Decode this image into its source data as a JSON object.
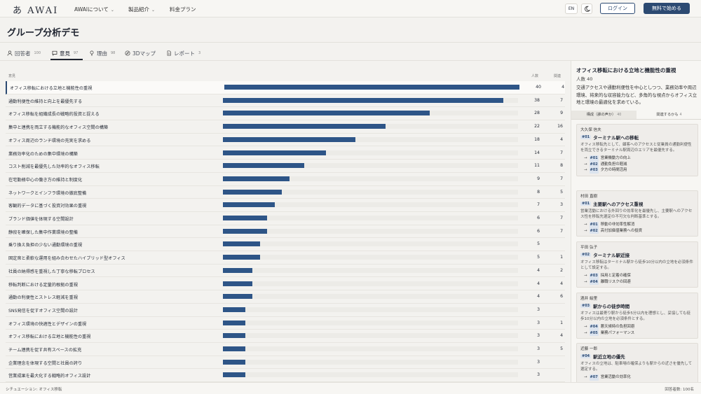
{
  "app": {
    "logo": "あ AWAI",
    "nav": [
      {
        "label": "AWAIについて"
      },
      {
        "label": "製品紹介"
      },
      {
        "label": "料金プラン"
      }
    ],
    "lang": "EN",
    "login": "ログイン",
    "start": "無料で始める"
  },
  "page": {
    "title": "グループ分析デモ"
  },
  "tabs": [
    {
      "label": "回答者",
      "count": "100",
      "icon": "person-icon"
    },
    {
      "label": "意見",
      "count": "97",
      "icon": "speech-bubble-icon"
    },
    {
      "label": "理由",
      "count": "98",
      "icon": "lightbulb-icon"
    },
    {
      "label": "3Dマップ",
      "count": "",
      "icon": "compass-icon"
    },
    {
      "label": "レポート",
      "count": "3",
      "icon": "document-icon"
    }
  ],
  "table": {
    "headers": {
      "opinion": "意見",
      "count": "人数",
      "related": "関連"
    },
    "max": 40,
    "rows": [
      {
        "label": "オフィス移転における立地と機能性の重視",
        "count": "40",
        "related": "4"
      },
      {
        "label": "通勤利便性の維持と向上を最優先する",
        "count": "38",
        "related": "7"
      },
      {
        "label": "オフィス移転を組織成長の戦略的投資と捉える",
        "count": "28",
        "related": "9"
      },
      {
        "label": "集中と連携を両立する機能的なオフィス空間の構築",
        "count": "22",
        "related": "16"
      },
      {
        "label": "オフィス周辺のランチ環境の充実を求める",
        "count": "18",
        "related": "4"
      },
      {
        "label": "業務効率化のための集中環境の構築",
        "count": "14",
        "related": "7"
      },
      {
        "label": "コスト削減を最優先した効率的なオフィス移転",
        "count": "11",
        "related": "8"
      },
      {
        "label": "在宅勤務中心の働き方の維持と制度化",
        "count": "9",
        "related": "7"
      },
      {
        "label": "ネットワークとインフラ環境の徹底整備",
        "count": "8",
        "related": "5"
      },
      {
        "label": "客観的データに基づく投資対効果の重視",
        "count": "7",
        "related": "3"
      },
      {
        "label": "ブランド価値を体現する空間設計",
        "count": "6",
        "related": "7"
      },
      {
        "label": "静寂を確保した集中作業環境の整備",
        "count": "6",
        "related": "7"
      },
      {
        "label": "乗り換え負担の少ない通勤環境の重視",
        "count": "5",
        "related": ""
      },
      {
        "label": "固定席と柔軟な運用を組み合わせたハイブリッド型オフィス",
        "count": "5",
        "related": "1"
      },
      {
        "label": "社員の納得感を重視した丁寧な移転プロセス",
        "count": "4",
        "related": "2"
      },
      {
        "label": "移転判断における定量的根拠の重視",
        "count": "4",
        "related": "4"
      },
      {
        "label": "通勤の利便性とストレス軽減を重視",
        "count": "4",
        "related": "6"
      },
      {
        "label": "SNS発信を促すオフィス空間の設計",
        "count": "3",
        "related": ""
      },
      {
        "label": "オフィス環境の快適性とデザインの重視",
        "count": "3",
        "related": "1"
      },
      {
        "label": "オフィス移転における立地と機能性の重視",
        "count": "3",
        "related": "4"
      },
      {
        "label": "チーム連携を促す共有スペースの拡充",
        "count": "3",
        "related": "5"
      },
      {
        "label": "企業理念を体現する空間と社員の誇り",
        "count": "3",
        "related": ""
      },
      {
        "label": "営業成果を最大化する戦略的オフィス設計",
        "count": "3",
        "related": ""
      }
    ]
  },
  "panel": {
    "title": "オフィス移転における立地と機能性の重視",
    "sub": "人数 40",
    "desc": "交通アクセスや通勤利便性を中心としつつ、業務効率や周辺環境、将来的な収容能力など、多角的な視点からオフィス立地と環境の最適化を求めている。",
    "tabs": [
      {
        "label": "構成（誰の声か）",
        "count": "40"
      },
      {
        "label": "関連するかも",
        "count": "4"
      }
    ],
    "cards": [
      {
        "author": "大久保 信夫",
        "tag": "#01",
        "title": "ターミナル駅への移転",
        "body": "オフィス移転先として、顧客へのアクセスと従業員の通勤利便性を両立できるターミナル駅周辺のエリアを最優先する。",
        "links": [
          {
            "tag": "#01",
            "text": "営業機動力の向上"
          },
          {
            "tag": "#02",
            "text": "通勤負担の軽減"
          },
          {
            "tag": "#03",
            "text": "夕方の時間活用"
          }
        ]
      },
      {
        "author": "村田 直樹",
        "tag": "#01",
        "title": "主要駅へのアクセス重視",
        "body": "営業活動における外回りの効率化を最優先し、主要駅へのアクセス性を移転先選定の不可欠な判断基準とする。",
        "links": [
          {
            "tag": "#01",
            "text": "移動の非効率性解消"
          },
          {
            "tag": "#02",
            "text": "高付加価値業務への投資"
          }
        ]
      },
      {
        "author": "平田 弘子",
        "tag": "#02",
        "title": "ターミナル駅近接",
        "body": "オフィス移転はターミナル駅から徒歩10分以内の立地を必須条件として設定する。",
        "links": [
          {
            "tag": "#03",
            "text": "採用と定着の確保"
          },
          {
            "tag": "#04",
            "text": "離職リスクの回避"
          }
        ]
      },
      {
        "author": "酒井 絵里",
        "tag": "#03",
        "title": "駅からの徒歩時間",
        "body": "オフィスは最寄り駅から徒歩5分以内を理想とし、妥協しても徒歩10分以内の立地を必須条件とする。",
        "links": [
          {
            "tag": "#04",
            "text": "悪天候時の負担回避"
          },
          {
            "tag": "#05",
            "text": "業務パフォーマンス"
          }
        ]
      },
      {
        "author": "近藤 一郎",
        "tag": "#04",
        "title": "駅近立地の優先",
        "body": "オフィスの立地は、駐車場の確保よりも駅からの近さを優先して選定する。",
        "links": [
          {
            "tag": "#07",
            "text": "営業活動の効率化"
          }
        ]
      }
    ]
  },
  "footer": {
    "left": "シチュエーション: オフィス移転",
    "right": "回答者数: 100名"
  }
}
